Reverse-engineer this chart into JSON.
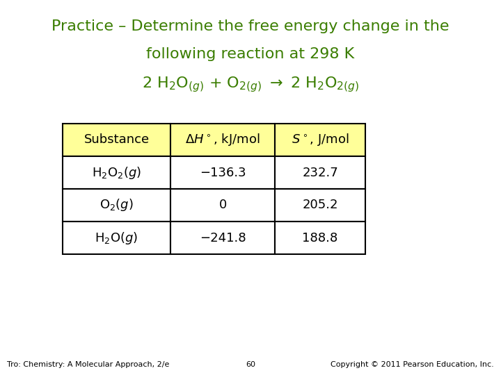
{
  "title_line1": "Practice – Determine the free energy change in the",
  "title_line2": "following reaction at 298 K",
  "title_color": "#3a7d00",
  "bg_color": "#ffffff",
  "header": [
    "Substance",
    "ΔH°, kJ/mol",
    "S°, J/mol"
  ],
  "rows": [
    [
      "−136.3",
      "232.7"
    ],
    [
      "0",
      "205.2"
    ],
    [
      "−241.8",
      "188.8"
    ]
  ],
  "row_substances_math": [
    "H$_2$O$_2$($g$)",
    "O$_2$($g$)",
    "H$_2$O($g$)"
  ],
  "header_bg": "#ffff99",
  "cell_bg": "#ffffff",
  "border_color": "#000000",
  "text_color": "#000000",
  "footer_left": "Tro: Chemistry: A Molecular Approach, 2/e",
  "footer_center": "60",
  "footer_right": "Copyright © 2011 Pearson Education, Inc.",
  "footer_color": "#000000",
  "title_fontsize": 16,
  "table_fontsize": 13,
  "footer_fontsize": 8
}
